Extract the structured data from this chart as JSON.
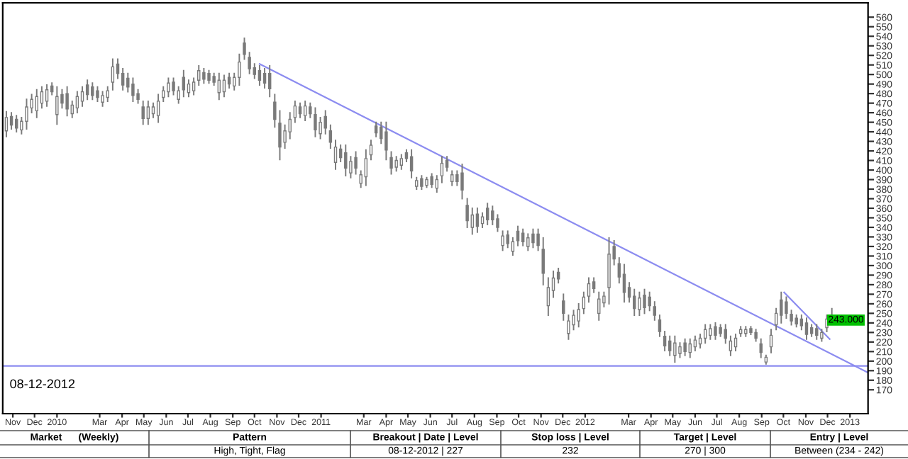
{
  "chart_data": {
    "type": "candlestick",
    "annotations": [
      "08-12-2012",
      "243.000",
      "Market      (Weekly)",
      "Pattern",
      "Breakout | Date | Level",
      "Stop loss | Level",
      "Target | Level",
      "Entry | Level",
      "High, Tight, Flag",
      "08-12-2012 | 227",
      "232",
      "270 | 300",
      "Between (234 - 242)"
    ],
    "x": [
      "2009-10-23",
      "2009-10-30",
      "2009-11-06",
      "2009-11-13",
      "2009-11-20",
      "2009-11-27",
      "2009-12-04",
      "2009-12-11",
      "2009-12-18",
      "2009-12-25",
      "2010-01-01",
      "2010-01-08",
      "2010-01-15",
      "2010-01-22",
      "2010-01-29",
      "2010-02-05",
      "2010-02-12",
      "2010-02-19",
      "2010-02-26",
      "2010-03-05",
      "2010-03-12",
      "2010-03-19",
      "2010-03-26",
      "2010-04-02",
      "2010-04-09",
      "2010-04-16",
      "2010-04-23",
      "2010-04-30",
      "2010-05-07",
      "2010-05-14",
      "2010-05-21",
      "2010-05-28",
      "2010-06-04",
      "2010-06-11",
      "2010-06-18",
      "2010-06-25",
      "2010-07-02",
      "2010-07-09",
      "2010-07-16",
      "2010-07-23",
      "2010-07-30",
      "2010-08-06",
      "2010-08-13",
      "2010-08-20",
      "2010-08-27",
      "2010-09-03",
      "2010-09-10",
      "2010-09-17",
      "2010-09-24",
      "2010-10-01",
      "2010-10-08",
      "2010-10-15",
      "2010-10-22",
      "2010-10-29",
      "2010-11-05",
      "2010-11-12",
      "2010-11-19",
      "2010-11-26",
      "2010-12-03",
      "2010-12-10",
      "2010-12-17",
      "2010-12-24",
      "2010-12-31",
      "2011-01-07",
      "2011-01-14",
      "2011-01-21",
      "2011-01-28",
      "2011-02-04",
      "2011-02-11",
      "2011-02-18",
      "2011-02-25",
      "2011-03-04",
      "2011-03-11",
      "2011-03-18",
      "2011-03-25",
      "2011-04-01",
      "2011-04-08",
      "2011-04-15",
      "2011-04-22",
      "2011-04-29",
      "2011-05-06",
      "2011-05-13",
      "2011-05-20",
      "2011-05-27",
      "2011-06-03",
      "2011-06-10",
      "2011-06-17",
      "2011-06-24",
      "2011-07-01",
      "2011-07-08",
      "2011-07-15",
      "2011-07-22",
      "2011-07-29",
      "2011-08-05",
      "2011-08-12",
      "2011-08-19",
      "2011-08-26",
      "2011-09-02",
      "2011-09-09",
      "2011-09-16",
      "2011-09-23",
      "2011-09-30",
      "2011-10-07",
      "2011-10-14",
      "2011-10-21",
      "2011-10-28",
      "2011-11-04",
      "2011-11-11",
      "2011-11-18",
      "2011-11-25",
      "2011-12-02",
      "2011-12-09",
      "2011-12-16",
      "2011-12-23",
      "2011-12-30",
      "2012-01-06",
      "2012-01-13",
      "2012-01-20",
      "2012-01-27",
      "2012-02-03",
      "2012-02-10",
      "2012-02-17",
      "2012-02-24",
      "2012-03-02",
      "2012-03-09",
      "2012-03-16",
      "2012-03-23",
      "2012-03-30",
      "2012-04-06",
      "2012-04-13",
      "2012-04-20",
      "2012-04-27",
      "2012-05-04",
      "2012-05-11",
      "2012-05-18",
      "2012-05-25",
      "2012-06-01",
      "2012-06-08",
      "2012-06-15",
      "2012-06-22",
      "2012-06-29",
      "2012-07-06",
      "2012-07-13",
      "2012-07-20",
      "2012-07-27",
      "2012-08-03",
      "2012-08-10",
      "2012-08-17",
      "2012-08-24",
      "2012-08-31",
      "2012-09-07",
      "2012-09-14",
      "2012-09-21",
      "2012-09-28",
      "2012-10-05",
      "2012-10-12",
      "2012-10-19",
      "2012-10-26",
      "2012-11-02",
      "2012-11-09",
      "2012-11-16",
      "2012-11-23",
      "2012-11-30",
      "2012-12-07"
    ],
    "ohlc": [
      [
        441,
        461,
        435,
        455
      ],
      [
        456,
        460,
        443,
        447
      ],
      [
        453,
        457,
        440,
        444
      ],
      [
        442,
        455,
        438,
        451
      ],
      [
        451,
        474,
        443,
        466
      ],
      [
        465,
        479,
        460,
        474
      ],
      [
        462,
        484,
        455,
        477
      ],
      [
        470,
        487,
        465,
        482
      ],
      [
        472,
        489,
        467,
        484
      ],
      [
        488,
        491,
        479,
        482
      ],
      [
        458,
        487,
        448,
        477
      ],
      [
        479,
        484,
        465,
        470
      ],
      [
        480,
        487,
        457,
        464
      ],
      [
        459,
        472,
        455,
        468
      ],
      [
        465,
        482,
        460,
        477
      ],
      [
        472,
        487,
        467,
        482
      ],
      [
        489,
        494,
        474,
        479
      ],
      [
        487,
        491,
        474,
        478
      ],
      [
        483,
        487,
        472,
        476
      ],
      [
        471,
        482,
        467,
        478
      ],
      [
        476,
        487,
        472,
        483
      ],
      [
        492,
        516,
        484,
        508
      ],
      [
        511,
        516,
        496,
        501
      ],
      [
        501,
        506,
        484,
        489
      ],
      [
        496,
        501,
        482,
        487
      ],
      [
        490,
        496,
        472,
        478
      ],
      [
        480,
        484,
        470,
        474
      ],
      [
        466,
        472,
        448,
        454
      ],
      [
        454,
        472,
        448,
        466
      ],
      [
        459,
        470,
        455,
        466
      ],
      [
        457,
        479,
        450,
        472
      ],
      [
        476,
        487,
        472,
        483
      ],
      [
        482,
        496,
        477,
        491
      ],
      [
        492,
        496,
        479,
        483
      ],
      [
        474,
        487,
        470,
        483
      ],
      [
        497,
        504,
        477,
        484
      ],
      [
        481,
        494,
        477,
        490
      ],
      [
        483,
        496,
        479,
        492
      ],
      [
        494,
        509,
        489,
        504
      ],
      [
        502,
        506,
        491,
        495
      ],
      [
        501,
        504,
        491,
        494
      ],
      [
        498,
        501,
        489,
        492
      ],
      [
        481,
        501,
        474,
        494
      ],
      [
        482,
        499,
        477,
        494
      ],
      [
        497,
        501,
        486,
        490
      ],
      [
        488,
        501,
        484,
        497
      ],
      [
        497,
        521,
        489,
        513
      ],
      [
        533,
        538,
        516,
        521
      ],
      [
        518,
        523,
        501,
        506
      ],
      [
        507,
        511,
        496,
        500
      ],
      [
        504,
        509,
        489,
        494
      ],
      [
        501,
        506,
        486,
        491
      ],
      [
        501,
        509,
        477,
        485
      ],
      [
        471,
        479,
        445,
        453
      ],
      [
        449,
        462,
        411,
        424
      ],
      [
        429,
        447,
        423,
        441
      ],
      [
        440,
        460,
        433,
        453
      ],
      [
        455,
        472,
        450,
        467
      ],
      [
        466,
        470,
        455,
        459
      ],
      [
        457,
        472,
        452,
        467
      ],
      [
        466,
        470,
        455,
        459
      ],
      [
        458,
        465,
        435,
        442
      ],
      [
        438,
        455,
        433,
        450
      ],
      [
        456,
        462,
        438,
        444
      ],
      [
        441,
        447,
        423,
        429
      ],
      [
        408,
        431,
        401,
        424
      ],
      [
        422,
        426,
        409,
        413
      ],
      [
        418,
        426,
        394,
        402
      ],
      [
        397,
        414,
        392,
        409
      ],
      [
        413,
        419,
        396,
        402
      ],
      [
        386,
        399,
        382,
        395
      ],
      [
        393,
        421,
        384,
        412
      ],
      [
        416,
        431,
        411,
        426
      ],
      [
        446,
        450,
        435,
        439
      ],
      [
        445,
        450,
        428,
        433
      ],
      [
        440,
        450,
        411,
        421
      ],
      [
        413,
        419,
        396,
        402
      ],
      [
        403,
        414,
        399,
        410
      ],
      [
        405,
        416,
        401,
        412
      ],
      [
        418,
        421,
        409,
        412
      ],
      [
        414,
        421,
        392,
        399
      ],
      [
        383,
        392,
        380,
        389
      ],
      [
        391,
        394,
        380,
        383
      ],
      [
        384,
        392,
        382,
        390
      ],
      [
        393,
        396,
        382,
        385
      ],
      [
        381,
        394,
        377,
        390
      ],
      [
        394,
        414,
        387,
        407
      ],
      [
        410,
        414,
        399,
        403
      ],
      [
        388,
        399,
        384,
        395
      ],
      [
        395,
        399,
        384,
        388
      ],
      [
        397,
        406,
        370,
        379
      ],
      [
        363,
        370,
        340,
        347
      ],
      [
        340,
        360,
        333,
        353
      ],
      [
        354,
        360,
        335,
        341
      ],
      [
        344,
        355,
        340,
        351
      ],
      [
        360,
        365,
        343,
        348
      ],
      [
        357,
        362,
        343,
        348
      ],
      [
        349,
        353,
        336,
        340
      ],
      [
        321,
        336,
        316,
        331
      ],
      [
        332,
        336,
        319,
        323
      ],
      [
        315,
        329,
        311,
        325
      ],
      [
        336,
        341,
        321,
        326
      ],
      [
        334,
        338,
        321,
        325
      ],
      [
        320,
        333,
        316,
        329
      ],
      [
        333,
        338,
        319,
        324
      ],
      [
        333,
        338,
        316,
        321
      ],
      [
        317,
        329,
        280,
        292
      ],
      [
        258,
        287,
        248,
        277
      ],
      [
        274,
        294,
        267,
        287
      ],
      [
        293,
        297,
        282,
        286
      ],
      [
        263,
        270,
        243,
        250
      ],
      [
        229,
        248,
        223,
        242
      ],
      [
        238,
        253,
        233,
        248
      ],
      [
        242,
        260,
        236,
        254
      ],
      [
        255,
        272,
        250,
        267
      ],
      [
        268,
        287,
        262,
        281
      ],
      [
        283,
        287,
        272,
        276
      ],
      [
        250,
        272,
        243,
        265
      ],
      [
        261,
        272,
        257,
        268
      ],
      [
        277,
        329,
        260,
        312
      ],
      [
        320,
        326,
        301,
        307
      ],
      [
        302,
        308,
        282,
        288
      ],
      [
        291,
        301,
        262,
        272
      ],
      [
        277,
        282,
        262,
        267
      ],
      [
        268,
        275,
        248,
        255
      ],
      [
        254,
        272,
        248,
        266
      ],
      [
        269,
        275,
        250,
        256
      ],
      [
        267,
        272,
        253,
        258
      ],
      [
        257,
        262,
        243,
        248
      ],
      [
        243,
        248,
        226,
        231
      ],
      [
        226,
        231,
        211,
        216
      ],
      [
        221,
        226,
        206,
        211
      ],
      [
        206,
        226,
        199,
        219
      ],
      [
        208,
        219,
        204,
        215
      ],
      [
        219,
        223,
        206,
        210
      ],
      [
        209,
        223,
        204,
        218
      ],
      [
        215,
        226,
        211,
        222
      ],
      [
        218,
        228,
        214,
        224
      ],
      [
        224,
        238,
        219,
        233
      ],
      [
        227,
        238,
        223,
        234
      ],
      [
        236,
        240,
        223,
        227
      ],
      [
        235,
        238,
        226,
        229
      ],
      [
        233,
        238,
        219,
        224
      ],
      [
        211,
        226,
        206,
        221
      ],
      [
        215,
        228,
        211,
        224
      ],
      [
        229,
        236,
        226,
        233
      ],
      [
        229,
        236,
        226,
        233
      ],
      [
        234,
        236,
        228,
        230
      ],
      [
        230,
        233,
        221,
        224
      ],
      [
        218,
        223,
        204,
        209
      ],
      [
        199,
        206,
        197,
        204
      ],
      [
        215,
        233,
        209,
        227
      ],
      [
        238,
        255,
        233,
        250
      ],
      [
        264,
        272,
        240,
        248
      ],
      [
        262,
        267,
        245,
        250
      ],
      [
        249,
        253,
        238,
        242
      ],
      [
        245,
        248,
        236,
        239
      ],
      [
        244,
        248,
        233,
        237
      ],
      [
        240,
        245,
        223,
        228
      ],
      [
        235,
        238,
        226,
        229
      ],
      [
        234,
        238,
        223,
        227
      ],
      [
        224,
        233,
        221,
        230
      ],
      [
        235,
        248,
        231,
        244
      ],
      [
        241,
        255,
        240,
        243
      ]
    ],
    "color": "#7a7a7a",
    "series": [
      {
        "type": "line",
        "color": "#8c8cf0",
        "x": [
          "2010-10-08",
          "2013-01-26"
        ],
        "values": [
          511,
          188
        ]
      },
      {
        "type": "line",
        "color": "#8c8cf0",
        "x": [
          "2012-10-02",
          "2012-12-04"
        ],
        "values": [
          272,
          223
        ]
      }
    ],
    "ref_lines": [
      {
        "axis": "y",
        "value": 195,
        "color": "#8c8cf0"
      }
    ],
    "xlim": [
      "2009-10-18",
      "2013-01-26"
    ],
    "xticks": [
      {
        "value": "2009-11-01",
        "label": "Nov"
      },
      {
        "value": "2009-12-01",
        "label": "Dec"
      },
      {
        "value": "2010-01-01",
        "label": "2010"
      },
      {
        "value": "2010-03-01",
        "label": "Mar"
      },
      {
        "value": "2010-04-01",
        "label": "Apr"
      },
      {
        "value": "2010-05-01",
        "label": "May"
      },
      {
        "value": "2010-06-01",
        "label": "Jun"
      },
      {
        "value": "2010-07-01",
        "label": "Jul"
      },
      {
        "value": "2010-08-01",
        "label": "Aug"
      },
      {
        "value": "2010-09-01",
        "label": "Sep"
      },
      {
        "value": "2010-10-01",
        "label": "Oct"
      },
      {
        "value": "2010-11-01",
        "label": "Nov"
      },
      {
        "value": "2010-12-01",
        "label": "Dec"
      },
      {
        "value": "2011-01-01",
        "label": "2011"
      },
      {
        "value": "2011-03-01",
        "label": "Mar"
      },
      {
        "value": "2011-04-01",
        "label": "Apr"
      },
      {
        "value": "2011-05-01",
        "label": "May"
      },
      {
        "value": "2011-06-01",
        "label": "Jun"
      },
      {
        "value": "2011-07-01",
        "label": "Jul"
      },
      {
        "value": "2011-08-01",
        "label": "Aug"
      },
      {
        "value": "2011-09-01",
        "label": "Sep"
      },
      {
        "value": "2011-10-01",
        "label": "Oct"
      },
      {
        "value": "2011-11-01",
        "label": "Nov"
      },
      {
        "value": "2011-12-01",
        "label": "Dec"
      },
      {
        "value": "2012-01-01",
        "label": "2012"
      },
      {
        "value": "2012-03-01",
        "label": "Mar"
      },
      {
        "value": "2012-04-01",
        "label": "Apr"
      },
      {
        "value": "2012-05-01",
        "label": "May"
      },
      {
        "value": "2012-06-01",
        "label": "Jun"
      },
      {
        "value": "2012-07-01",
        "label": "Jul"
      },
      {
        "value": "2012-08-01",
        "label": "Aug"
      },
      {
        "value": "2012-09-01",
        "label": "Sep"
      },
      {
        "value": "2012-10-01",
        "label": "Oct"
      },
      {
        "value": "2012-11-01",
        "label": "Nov"
      },
      {
        "value": "2012-12-01",
        "label": "Dec"
      },
      {
        "value": "2013-01-01",
        "label": "2013"
      }
    ],
    "ylim": [
      145,
      575
    ],
    "yticks": [
      170,
      180,
      190,
      200,
      210,
      220,
      230,
      240,
      250,
      260,
      270,
      280,
      290,
      300,
      310,
      320,
      330,
      340,
      350,
      360,
      370,
      380,
      390,
      400,
      410,
      420,
      430,
      440,
      450,
      460,
      470,
      480,
      490,
      500,
      510,
      520,
      530,
      540,
      550,
      560
    ],
    "grid": false,
    "legend": false
  }
}
